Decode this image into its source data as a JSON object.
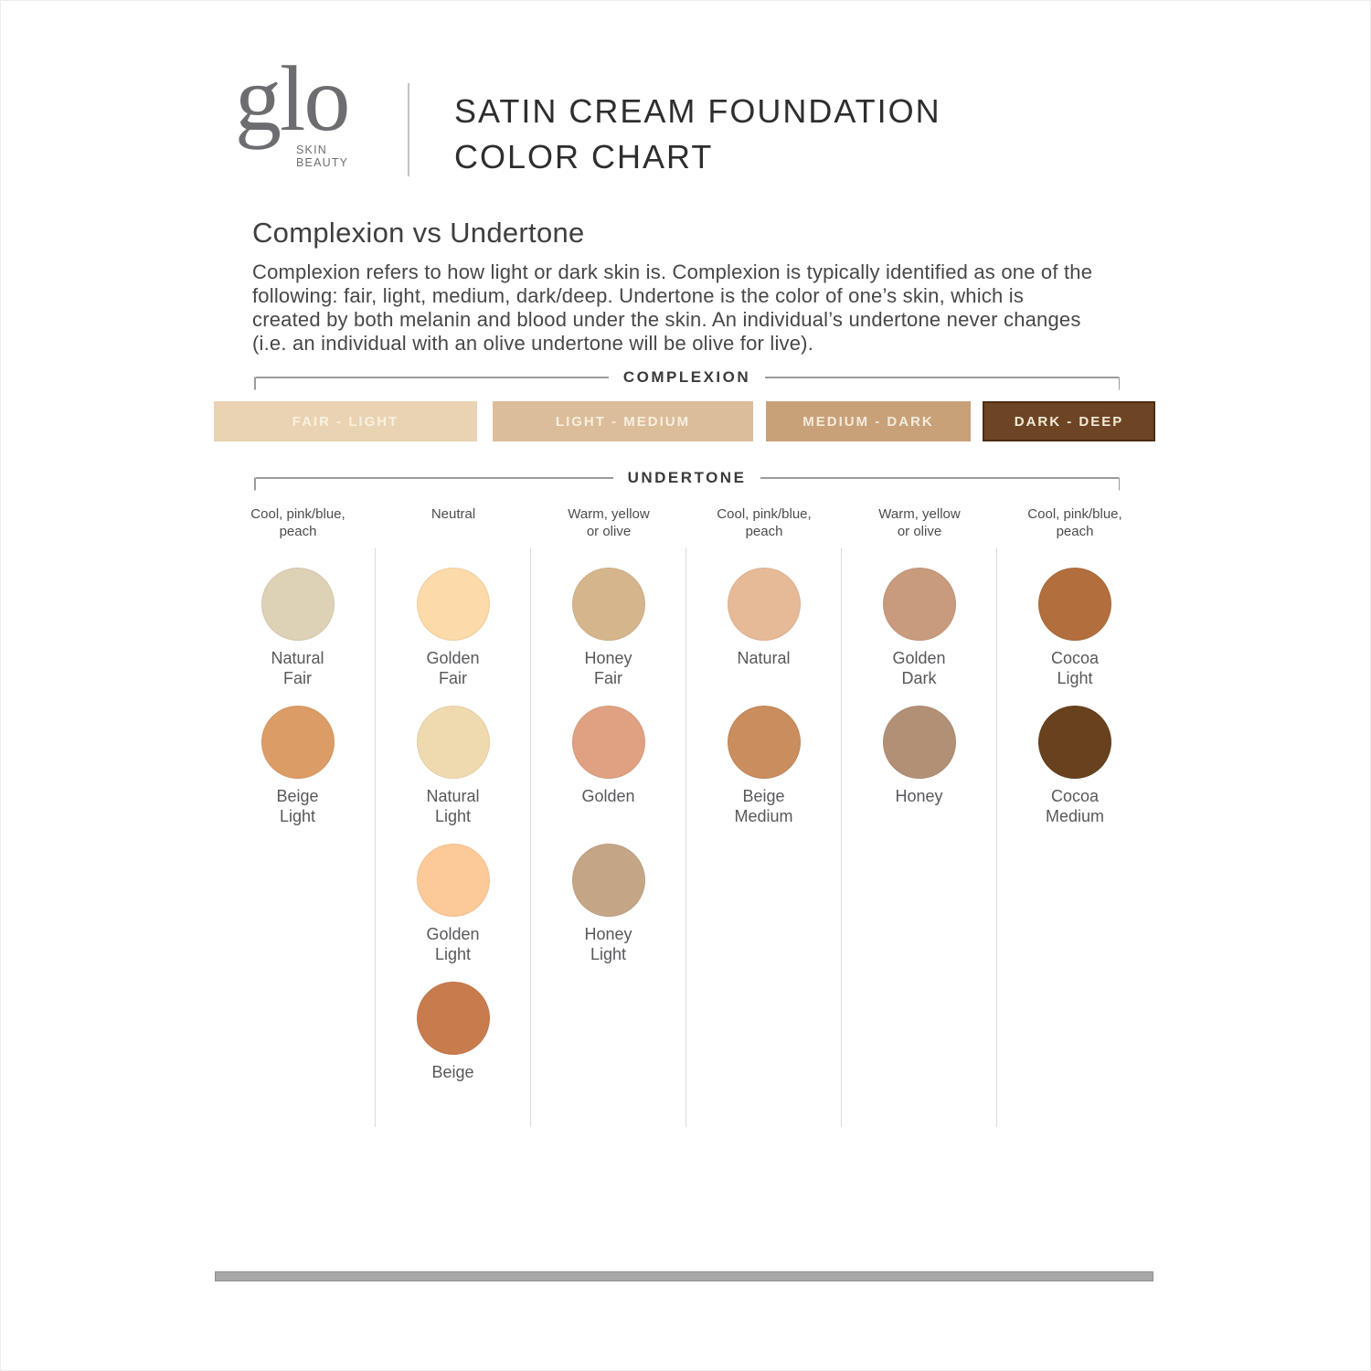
{
  "brand": {
    "logo_text": "glo",
    "logo_sub_line1": "SKIN",
    "logo_sub_line2": "BEAUTY"
  },
  "header": {
    "title_line1": "SATIN CREAM FOUNDATION",
    "title_line2": "COLOR CHART"
  },
  "intro": {
    "heading": "Complexion vs Undertone",
    "body_lines": [
      "Complexion refers to how light or dark skin is. Complexion is typically identified as one of the",
      "following: fair, light, medium, dark/deep. Undertone is the color of one’s skin, which is",
      "created by both melanin and blood under the skin. An individual’s undertone never changes",
      "(i.e. an individual with an olive undertone will be olive for live)."
    ]
  },
  "complexion": {
    "label": "COMPLEXION",
    "bands": [
      {
        "label": "FAIR - LIGHT",
        "color": "#ead3b2",
        "text_color": "#f8f1e1"
      },
      {
        "label": "LIGHT - MEDIUM",
        "color": "#dcbd9a",
        "text_color": "#f7efe0"
      },
      {
        "label": "MEDIUM - DARK",
        "color": "#c8a179",
        "text_color": "#f5ecdc"
      },
      {
        "label": "DARK - DEEP",
        "color": "#6d4524",
        "text_color": "#f3ead8",
        "border_color": "#4a2d15"
      }
    ]
  },
  "undertone": {
    "label": "UNDERTONE",
    "columns": [
      {
        "header_lines": [
          "Cool, pink/blue,",
          "peach"
        ],
        "swatches": [
          {
            "name_lines": [
              "Natural",
              "Fair"
            ],
            "color": "#ddd1b6"
          },
          {
            "name_lines": [
              "Beige",
              "Light"
            ],
            "color": "#dc9c66"
          }
        ]
      },
      {
        "header_lines": [
          "Neutral"
        ],
        "swatches": [
          {
            "name_lines": [
              "Golden",
              "Fair"
            ],
            "color": "#fcdaa9"
          },
          {
            "name_lines": [
              "Natural",
              "Light"
            ],
            "color": "#eedaae"
          },
          {
            "name_lines": [
              "Golden",
              "Light"
            ],
            "color": "#fcc998"
          },
          {
            "name_lines": [
              "Beige"
            ],
            "color": "#c87c4e"
          }
        ]
      },
      {
        "header_lines": [
          "Warm, yellow",
          "or olive"
        ],
        "swatches": [
          {
            "name_lines": [
              "Honey",
              "Fair"
            ],
            "color": "#d5b68c"
          },
          {
            "name_lines": [
              "Golden"
            ],
            "color": "#dfa181"
          },
          {
            "name_lines": [
              "Honey",
              "Light"
            ],
            "color": "#c4a687"
          }
        ]
      },
      {
        "header_lines": [
          "Cool, pink/blue,",
          "peach"
        ],
        "swatches": [
          {
            "name_lines": [
              "Natural"
            ],
            "color": "#e7ba97"
          },
          {
            "name_lines": [
              "Beige",
              "Medium"
            ],
            "color": "#c98d5e"
          }
        ]
      },
      {
        "header_lines": [
          "Warm, yellow",
          "or olive"
        ],
        "swatches": [
          {
            "name_lines": [
              "Golden",
              "Dark"
            ],
            "color": "#c99b7d"
          },
          {
            "name_lines": [
              "Honey"
            ],
            "color": "#b29076"
          }
        ]
      },
      {
        "header_lines": [
          "Cool, pink/blue,",
          "peach"
        ],
        "swatches": [
          {
            "name_lines": [
              "Cocoa",
              "Light"
            ],
            "color": "#b26f3d"
          },
          {
            "name_lines": [
              "Cocoa",
              "Medium"
            ],
            "color": "#68411e"
          }
        ]
      }
    ]
  }
}
